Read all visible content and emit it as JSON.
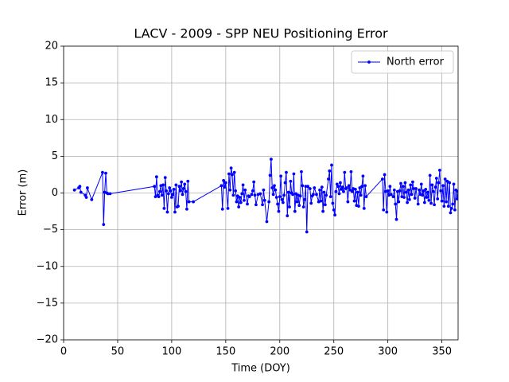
{
  "chart_data": {
    "type": "line",
    "title": "LACV - 2009 - SPP NEU Positioning Error",
    "x_label": "Time (DOY)",
    "y_label": "Error (m)",
    "xlim": [
      0,
      365
    ],
    "ylim": [
      -20,
      20
    ],
    "xticks": [
      0,
      50,
      100,
      150,
      200,
      250,
      300,
      350
    ],
    "yticks": [
      {
        "value": -20,
        "label": "−20"
      },
      {
        "value": -15,
        "label": "−15"
      },
      {
        "value": -10,
        "label": "−10"
      },
      {
        "value": -5,
        "label": "−5"
      },
      0,
      5,
      10,
      15,
      20
    ],
    "grid": true,
    "legend": "upper right",
    "x": [
      10,
      14,
      15,
      16,
      20,
      21,
      22,
      26,
      36,
      37,
      38,
      39,
      40,
      41,
      43,
      84,
      85,
      86,
      87,
      88,
      89,
      90,
      91,
      92,
      93,
      94,
      95,
      96,
      97,
      98,
      99,
      100,
      101,
      102,
      103,
      104,
      105,
      106,
      107,
      108,
      109,
      110,
      111,
      112,
      113,
      114,
      115,
      116,
      120,
      146,
      147,
      148,
      149,
      150,
      152,
      153,
      154,
      155,
      156,
      157,
      158,
      159,
      160,
      161,
      162,
      163,
      164,
      165,
      166,
      167,
      168,
      170,
      171,
      172,
      174,
      175,
      176,
      177,
      178,
      180,
      182,
      184,
      185,
      186,
      188,
      190,
      191,
      192,
      193,
      194,
      195,
      196,
      197,
      198,
      199,
      200,
      201,
      202,
      203,
      204,
      205,
      206,
      207,
      208,
      209,
      210,
      211,
      212,
      213,
      214,
      215,
      216,
      217,
      218,
      219,
      220,
      221,
      222,
      223,
      224,
      225,
      226,
      228,
      229,
      230,
      231,
      232,
      234,
      236,
      237,
      238,
      239,
      240,
      241,
      242,
      243,
      245,
      246,
      247,
      248,
      249,
      250,
      251,
      252,
      253,
      254,
      255,
      256,
      257,
      258,
      259,
      260,
      261,
      262,
      263,
      264,
      265,
      266,
      267,
      268,
      269,
      270,
      271,
      272,
      273,
      274,
      275,
      276,
      277,
      278,
      279,
      280,
      295,
      296,
      297,
      298,
      299,
      300,
      301,
      302,
      303,
      305,
      306,
      307,
      308,
      309,
      310,
      311,
      312,
      313,
      314,
      315,
      316,
      317,
      318,
      319,
      320,
      321,
      322,
      323,
      324,
      325,
      326,
      328,
      329,
      330,
      331,
      332,
      333,
      334,
      335,
      336,
      337,
      338,
      339,
      340,
      341,
      342,
      343,
      344,
      345,
      346,
      347,
      348,
      349,
      350,
      351,
      352,
      353,
      354,
      355,
      356,
      357,
      358,
      359,
      360,
      361,
      362,
      363,
      364,
      365
    ],
    "series": [
      {
        "name": "North error",
        "color": "#0000ff",
        "values": [
          0.4,
          0.7,
          0.9,
          0.1,
          -0.3,
          -0.6,
          0.7,
          -0.9,
          2.8,
          -4.3,
          0.1,
          2.7,
          0,
          -0.1,
          -0.1,
          0.9,
          -0.5,
          2.2,
          -0.3,
          -0.5,
          0.2,
          1.0,
          -0.3,
          1.1,
          -2.1,
          2.1,
          0.3,
          -2.6,
          -0.1,
          0.7,
          0.3,
          -0.6,
          -0.2,
          0.5,
          -2.6,
          1.1,
          -1.9,
          -1.8,
          0.9,
          0.3,
          1.5,
          -0.2,
          0.6,
          1.2,
          0.2,
          -2.2,
          1.6,
          -1.2,
          -1.2,
          1.0,
          -2.2,
          1.7,
          0.8,
          1.4,
          -2.1,
          2.6,
          0.4,
          3.4,
          2.5,
          -0.3,
          2.8,
          0.3,
          -1.2,
          -0.4,
          -1.9,
          -0.6,
          -1.3,
          -0.1,
          1.1,
          -1.0,
          0.4,
          -1.5,
          -0.4,
          -0.5,
          -0.2,
          0.3,
          1.5,
          -0.3,
          -1.6,
          -0.2,
          -0.1,
          -1.6,
          0.4,
          -1.0,
          -3.9,
          -1.2,
          2.4,
          4.6,
          0.7,
          -0.2,
          1.0,
          0.4,
          -0.6,
          -1.5,
          -2.5,
          -0.5,
          2.3,
          -0.9,
          -1.3,
          -0.3,
          1.4,
          2.8,
          -3.1,
          0.1,
          -1.9,
          1.6,
          0,
          -0.2,
          2.6,
          -2.5,
          -0.1,
          -1.2,
          -0.3,
          -1.7,
          -0.4,
          2.9,
          1.0,
          -1.9,
          -0.9,
          0.9,
          -5.3,
          0.9,
          0.6,
          -1.4,
          -0.4,
          -0.2,
          0.7,
          -0.2,
          -1.2,
          0.4,
          -1.1,
          0.8,
          -2.5,
          0.1,
          -1.6,
          -0.3,
          1.9,
          3.0,
          -0.5,
          3.8,
          -1.4,
          -2.3,
          -3.0,
          0.2,
          1.2,
          0.9,
          -0.1,
          1.4,
          0.5,
          0.8,
          0.2,
          2.8,
          0.6,
          0.7,
          -1.2,
          1.0,
          0.4,
          2.9,
          0.2,
          0.6,
          -1.1,
          0.5,
          -1.7,
          0.1,
          -1.8,
          0.7,
          -0.3,
          0.9,
          2.3,
          -2.1,
          1.0,
          -0.5,
          1.9,
          -2.3,
          2.5,
          0.2,
          -2.6,
          0.3,
          -0.3,
          0.9,
          -0.2,
          -0.5,
          0.4,
          -1.5,
          -3.6,
          0.2,
          -1.2,
          0.3,
          1.3,
          -0.5,
          0.9,
          -0.6,
          1.4,
          0.1,
          -1.3,
          0.4,
          -0.9,
          1.1,
          -0.2,
          1.5,
          0.6,
          -0.7,
          0.6,
          -1.5,
          0.4,
          -0.2,
          1.2,
          -0.3,
          0.3,
          -1.3,
          0.5,
          -0.6,
          0.1,
          -1.0,
          2.4,
          -1.4,
          1.1,
          0.2,
          -1.6,
          0.8,
          2.0,
          -0.8,
          1.4,
          3.1,
          0.3,
          -1.1,
          1.0,
          -1.8,
          1.9,
          -1.2,
          1.6,
          -1.8,
          1.4,
          -2.7,
          -2.1,
          -1.5,
          1.2,
          -2.3,
          0.4,
          -0.8,
          0.2
        ]
      }
    ]
  }
}
